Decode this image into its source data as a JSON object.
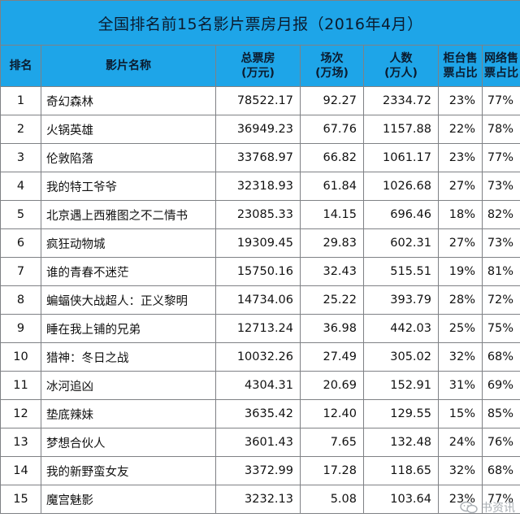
{
  "title": "全国排名前15名影片票房月报（2016年4月）",
  "headers": {
    "rank": "排名",
    "name": "影片名称",
    "box_office_1": "总票房",
    "box_office_2": "(万元)",
    "shows_1": "场次",
    "shows_2": "(万场)",
    "audience_1": "人数",
    "audience_2": "(万人)",
    "counter_1": "柜台售",
    "counter_2": "票占比",
    "online_1": "网络售",
    "online_2": "票占比"
  },
  "rows": [
    {
      "rank": "1",
      "name": "奇幻森林",
      "box_office": "78522.17",
      "shows": "92.27",
      "audience": "2334.72",
      "counter": "23%",
      "online": "77%"
    },
    {
      "rank": "2",
      "name": "火锅英雄",
      "box_office": "36949.23",
      "shows": "67.76",
      "audience": "1157.88",
      "counter": "22%",
      "online": "78%"
    },
    {
      "rank": "3",
      "name": "伦敦陷落",
      "box_office": "33768.97",
      "shows": "66.82",
      "audience": "1061.17",
      "counter": "23%",
      "online": "77%"
    },
    {
      "rank": "4",
      "name": "我的特工爷爷",
      "box_office": "32318.93",
      "shows": "61.84",
      "audience": "1026.68",
      "counter": "27%",
      "online": "73%"
    },
    {
      "rank": "5",
      "name": "北京遇上西雅图之不二情书",
      "box_office": "23085.33",
      "shows": "14.15",
      "audience": "696.46",
      "counter": "18%",
      "online": "82%"
    },
    {
      "rank": "6",
      "name": "疯狂动物城",
      "box_office": "19309.45",
      "shows": "29.83",
      "audience": "602.31",
      "counter": "27%",
      "online": "73%"
    },
    {
      "rank": "7",
      "name": "谁的青春不迷茫",
      "box_office": "15750.16",
      "shows": "32.43",
      "audience": "515.51",
      "counter": "19%",
      "online": "81%"
    },
    {
      "rank": "8",
      "name": "蝙蝠侠大战超人：正义黎明",
      "box_office": "14734.06",
      "shows": "25.22",
      "audience": "393.79",
      "counter": "28%",
      "online": "72%"
    },
    {
      "rank": "9",
      "name": "睡在我上铺的兄弟",
      "box_office": "12713.24",
      "shows": "36.98",
      "audience": "442.03",
      "counter": "25%",
      "online": "75%"
    },
    {
      "rank": "10",
      "name": "猎神：冬日之战",
      "box_office": "10032.26",
      "shows": "27.49",
      "audience": "305.02",
      "counter": "32%",
      "online": "68%"
    },
    {
      "rank": "11",
      "name": "冰河追凶",
      "box_office": "4304.31",
      "shows": "20.69",
      "audience": "152.91",
      "counter": "31%",
      "online": "69%"
    },
    {
      "rank": "12",
      "name": "垫底辣妹",
      "box_office": "3635.42",
      "shows": "12.40",
      "audience": "129.55",
      "counter": "15%",
      "online": "85%"
    },
    {
      "rank": "13",
      "name": "梦想合伙人",
      "box_office": "3601.43",
      "shows": "7.65",
      "audience": "132.48",
      "counter": "24%",
      "online": "76%"
    },
    {
      "rank": "14",
      "name": "我的新野蛮女友",
      "box_office": "3372.99",
      "shows": "17.28",
      "audience": "118.65",
      "counter": "32%",
      "online": "68%"
    },
    {
      "rank": "15",
      "name": "魔宫魅影",
      "box_office": "3232.13",
      "shows": "5.08",
      "audience": "103.64",
      "counter": "23%",
      "online": "77%"
    }
  ],
  "watermark": {
    "text": "书资讯",
    "icon": "wechat-icon"
  },
  "colors": {
    "header_bg": "#1ea5e8",
    "border": "#7f8185",
    "text": "#111111"
  }
}
